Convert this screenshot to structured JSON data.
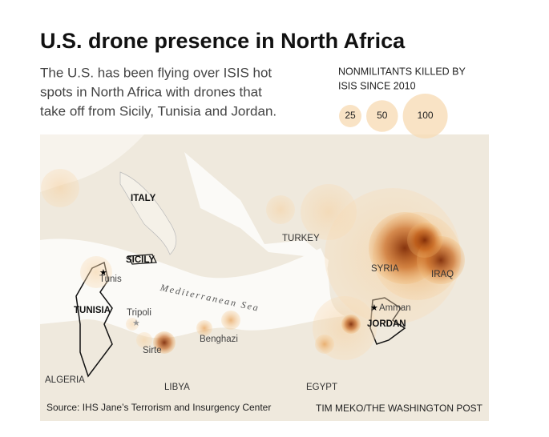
{
  "header": {
    "title": "U.S. drone presence in North Africa",
    "subtitle_lines": [
      "The U.S. has been flying over ISIS hot",
      "spots in North Africa with drones that",
      "take off from Sicily, Tunisia and Jordan."
    ]
  },
  "legend": {
    "title_lines": [
      "NONMILITANTS KILLED BY",
      "ISIS SINCE 2010"
    ],
    "sizes": [
      25,
      50,
      100
    ]
  },
  "map_labels": [
    "ITALY",
    "SICILY",
    "Tunis",
    "TUNISIA",
    "Tripoli",
    "Sirte",
    "Benghazi",
    "Mediterranean Sea",
    "TURKEY",
    "SYRIA",
    "IRAQ",
    "Amman",
    "JORDAN",
    "ALGERIA",
    "LIBYA",
    "EGYPT"
  ],
  "footer": {
    "source": "Source:  IHS Jane’s Terrorism and Insurgency Center",
    "credit": "TIM MEKO/THE WASHINGTON POST"
  }
}
